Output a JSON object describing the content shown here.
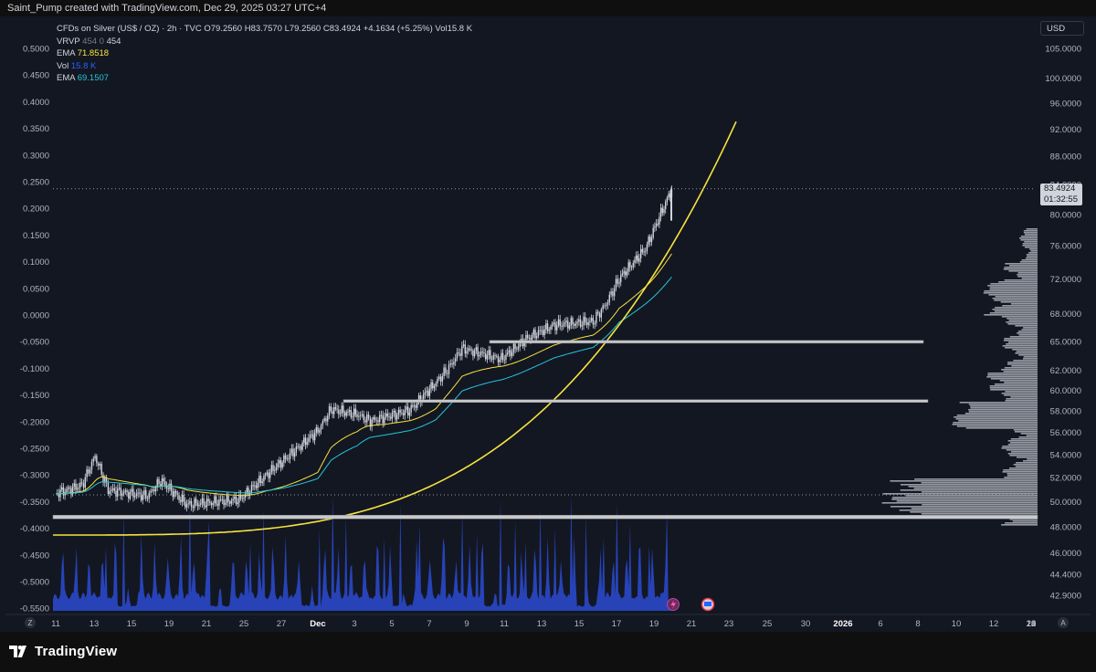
{
  "header": {
    "credit": "Saint_Pump created with TradingView.com, Dec 29, 2025 03:27 UTC+4"
  },
  "legend": {
    "symbol": "CFDs on Silver (US$ / OZ) · 2h · TVC",
    "ohlc": {
      "o": "O79.2560",
      "h": "H83.7570",
      "l": "L79.2560",
      "c": "C83.4924"
    },
    "change": "+4.1634 (+5.25%)",
    "vol": "Vol15.8 K",
    "vrvp": {
      "label": "VRVP",
      "v1": "454",
      "v2": "0",
      "v3": "454"
    },
    "ema1": {
      "label": "EMA",
      "value": "71.8518"
    },
    "volume": {
      "label": "Vol",
      "value": "15.8 K"
    },
    "ema2": {
      "label": "EMA",
      "value": "69.1507"
    }
  },
  "currency": "USD",
  "last_price": {
    "value": "83.4924",
    "countdown": "01:32:55"
  },
  "footer": {
    "brand": "TradingView",
    "z_button": "Z",
    "a_button": "A"
  },
  "colors": {
    "background": "#131722",
    "candles": "#d1d4dc",
    "ema_fast": "#f7e33f",
    "ema_slow": "#26c6da",
    "volume": "#2b4bd1",
    "parabola": "#f7e33f",
    "levels": "#c8c9cc"
  },
  "chart_data": {
    "type": "line",
    "title": "CFDs on Silver (US$ / OZ) · 2h · TVC",
    "right_axis": {
      "ticks": [
        "105.0000",
        "100.0000",
        "96.0000",
        "92.0000",
        "88.0000",
        "84.0000",
        "80.0000",
        "76.0000",
        "72.0000",
        "68.0000",
        "65.0000",
        "62.0000",
        "60.0000",
        "58.0000",
        "56.0000",
        "54.0000",
        "52.0000",
        "50.0000",
        "48.0000",
        "46.0000",
        "44.4000",
        "42.9000"
      ],
      "scale": "log"
    },
    "left_axis": {
      "ticks": [
        "0.5000",
        "0.4500",
        "0.4000",
        "0.3500",
        "0.3000",
        "0.2500",
        "0.2000",
        "0.1500",
        "0.1000",
        "0.0500",
        "0.0000",
        "-0.0500",
        "-0.1000",
        "-0.1500",
        "-0.2000",
        "-0.2500",
        "-0.3000",
        "-0.3500",
        "-0.4000",
        "-0.4500",
        "-0.5000",
        "-0.5500"
      ]
    },
    "x_ticks": [
      "11",
      "13",
      "15",
      "19",
      "21",
      "25",
      "27",
      "Dec",
      "3",
      "5",
      "7",
      "9",
      "11",
      "13",
      "15",
      "17",
      "19",
      "21",
      "23",
      "25",
      "30",
      "2026",
      "6",
      "8",
      "10",
      "12",
      "14",
      "16",
      "18",
      "20",
      "22",
      "24"
    ],
    "price_path": {
      "dates": [
        "Nov 11",
        "Nov 13",
        "Nov 14",
        "Nov 15",
        "Nov 18",
        "Nov 19",
        "Nov 21",
        "Nov 25",
        "Nov 27",
        "Dec 1",
        "Dec 2",
        "Dec 4",
        "Dec 5",
        "Dec 8",
        "Dec 10",
        "Dec 11",
        "Dec 12",
        "Dec 15",
        "Dec 17",
        "Dec 19",
        "Dec 22",
        "Dec 23",
        "Dec 24",
        "Dec 26",
        "Dec 28"
      ],
      "close": [
        50.7,
        51.4,
        53.9,
        51.0,
        50.5,
        51.8,
        49.8,
        50.2,
        52.2,
        56.2,
        58.2,
        57.7,
        57.1,
        58.1,
        60.8,
        62.3,
        64.3,
        63.2,
        65.4,
        66.8,
        67.2,
        69.2,
        72.1,
        75.7,
        83.49
      ]
    },
    "ema_fast": {
      "name": "EMA",
      "last": 71.8518
    },
    "ema_slow": {
      "name": "EMA",
      "last": 69.1507
    },
    "volume": {
      "name": "Vol",
      "last": "15.8 K"
    },
    "horizontal_levels": [
      65.0,
      59.0,
      48.8
    ],
    "last_price": 83.4924,
    "volume_profile": {
      "name": "VRVP",
      "value": 454
    }
  }
}
